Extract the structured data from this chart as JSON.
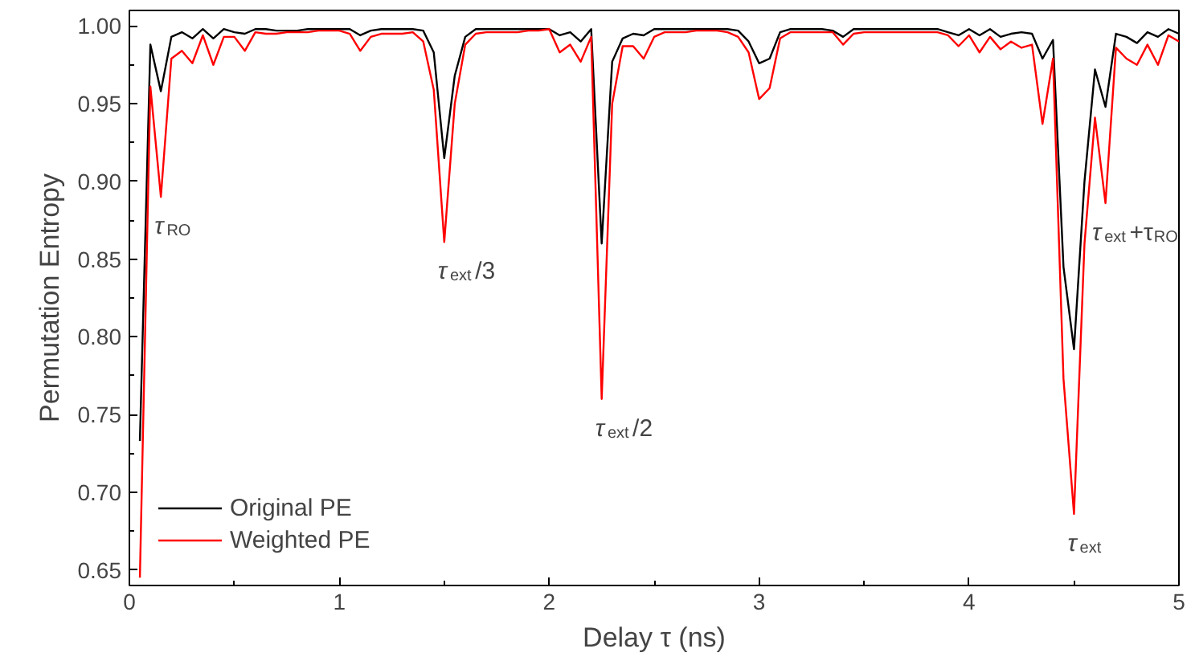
{
  "chart_data": {
    "type": "line",
    "xlabel": "Delay τ (ns)",
    "ylabel": "Permutation Entropy",
    "x": [
      0.05,
      0.1,
      0.15,
      0.2,
      0.25,
      0.3,
      0.35,
      0.4,
      0.45,
      0.5,
      0.55,
      0.6,
      0.65,
      0.7,
      0.75,
      0.8,
      0.85,
      0.9,
      0.95,
      1.0,
      1.05,
      1.1,
      1.15,
      1.2,
      1.25,
      1.3,
      1.35,
      1.4,
      1.45,
      1.5,
      1.55,
      1.6,
      1.65,
      1.7,
      1.75,
      1.8,
      1.85,
      1.9,
      1.95,
      2.0,
      2.05,
      2.1,
      2.15,
      2.2,
      2.25,
      2.3,
      2.35,
      2.4,
      2.45,
      2.5,
      2.55,
      2.6,
      2.65,
      2.7,
      2.75,
      2.8,
      2.85,
      2.9,
      2.95,
      3.0,
      3.05,
      3.1,
      3.15,
      3.2,
      3.25,
      3.3,
      3.35,
      3.4,
      3.45,
      3.5,
      3.55,
      3.6,
      3.65,
      3.7,
      3.75,
      3.8,
      3.85,
      3.9,
      3.95,
      4.0,
      4.05,
      4.1,
      4.15,
      4.2,
      4.25,
      4.3,
      4.35,
      4.4,
      4.45,
      4.5,
      4.55,
      4.6,
      4.65,
      4.7,
      4.75,
      4.8,
      4.85,
      4.9,
      4.95,
      5.0
    ],
    "series": [
      {
        "name": "Original PE",
        "color": "#000000",
        "values": [
          0.733,
          0.988,
          0.958,
          0.993,
          0.996,
          0.992,
          0.998,
          0.992,
          0.998,
          0.996,
          0.995,
          0.998,
          0.998,
          0.997,
          0.997,
          0.997,
          0.998,
          0.998,
          0.998,
          0.998,
          0.998,
          0.994,
          0.997,
          0.998,
          0.998,
          0.998,
          0.998,
          0.997,
          0.983,
          0.915,
          0.968,
          0.993,
          0.998,
          0.998,
          0.998,
          0.998,
          0.998,
          0.998,
          0.998,
          0.998,
          0.994,
          0.996,
          0.99,
          0.998,
          0.86,
          0.977,
          0.992,
          0.995,
          0.994,
          0.998,
          0.998,
          0.998,
          0.998,
          0.998,
          0.998,
          0.998,
          0.998,
          0.997,
          0.99,
          0.976,
          0.979,
          0.996,
          0.998,
          0.998,
          0.998,
          0.998,
          0.997,
          0.993,
          0.998,
          0.998,
          0.998,
          0.998,
          0.998,
          0.998,
          0.998,
          0.998,
          0.998,
          0.996,
          0.994,
          0.998,
          0.994,
          0.998,
          0.993,
          0.995,
          0.996,
          0.995,
          0.979,
          0.991,
          0.845,
          0.792,
          0.9,
          0.972,
          0.948,
          0.995,
          0.993,
          0.989,
          0.996,
          0.993,
          0.998,
          0.995
        ]
      },
      {
        "name": "Weighted PE",
        "color": "#ff0000",
        "values": [
          0.645,
          0.961,
          0.89,
          0.979,
          0.984,
          0.976,
          0.994,
          0.975,
          0.993,
          0.993,
          0.984,
          0.996,
          0.995,
          0.995,
          0.996,
          0.996,
          0.996,
          0.997,
          0.997,
          0.997,
          0.995,
          0.984,
          0.993,
          0.995,
          0.995,
          0.995,
          0.996,
          0.99,
          0.959,
          0.861,
          0.95,
          0.988,
          0.995,
          0.996,
          0.996,
          0.996,
          0.996,
          0.997,
          0.997,
          0.998,
          0.983,
          0.988,
          0.977,
          0.993,
          0.76,
          0.95,
          0.987,
          0.987,
          0.979,
          0.993,
          0.996,
          0.996,
          0.996,
          0.997,
          0.997,
          0.997,
          0.996,
          0.993,
          0.983,
          0.953,
          0.96,
          0.992,
          0.996,
          0.996,
          0.996,
          0.996,
          0.996,
          0.988,
          0.995,
          0.996,
          0.996,
          0.996,
          0.996,
          0.996,
          0.996,
          0.996,
          0.996,
          0.994,
          0.987,
          0.994,
          0.983,
          0.993,
          0.985,
          0.99,
          0.986,
          0.988,
          0.937,
          0.979,
          0.773,
          0.686,
          0.86,
          0.941,
          0.886,
          0.986,
          0.979,
          0.975,
          0.988,
          0.975,
          0.994,
          0.99
        ]
      }
    ],
    "xlim": [
      0,
      5
    ],
    "ylim": [
      0.64,
      1.01
    ],
    "xticks": [
      0,
      1,
      2,
      3,
      4,
      5
    ],
    "yticks": [
      {
        "value": 0.65,
        "label": "0.65"
      },
      {
        "value": 0.7,
        "label": "0.70"
      },
      {
        "value": 0.75,
        "label": "0.75"
      },
      {
        "value": 0.8,
        "label": "0.80"
      },
      {
        "value": 0.85,
        "label": "0.85"
      },
      {
        "value": 0.9,
        "label": "0.90"
      },
      {
        "value": 0.95,
        "label": "0.95"
      },
      {
        "value": 1.0,
        "label": "1.00"
      }
    ],
    "annotations": [
      {
        "text": "τ$_{RO}$",
        "x": 0.15,
        "y": 0.89
      },
      {
        "text": "τ$_{ext}$/3",
        "x": 1.5,
        "y": 0.861
      },
      {
        "text": "τ$_{ext}$/2",
        "x": 2.25,
        "y": 0.76
      },
      {
        "text": "τ$_{ext}$",
        "x": 4.5,
        "y": 0.686
      },
      {
        "text": "τ$_{ext}$+τ$_{RO}$",
        "x": 4.65,
        "y": 0.886
      }
    ],
    "grid": false,
    "legend": "bottom left",
    "marker": "none",
    "line_style": "solid"
  }
}
